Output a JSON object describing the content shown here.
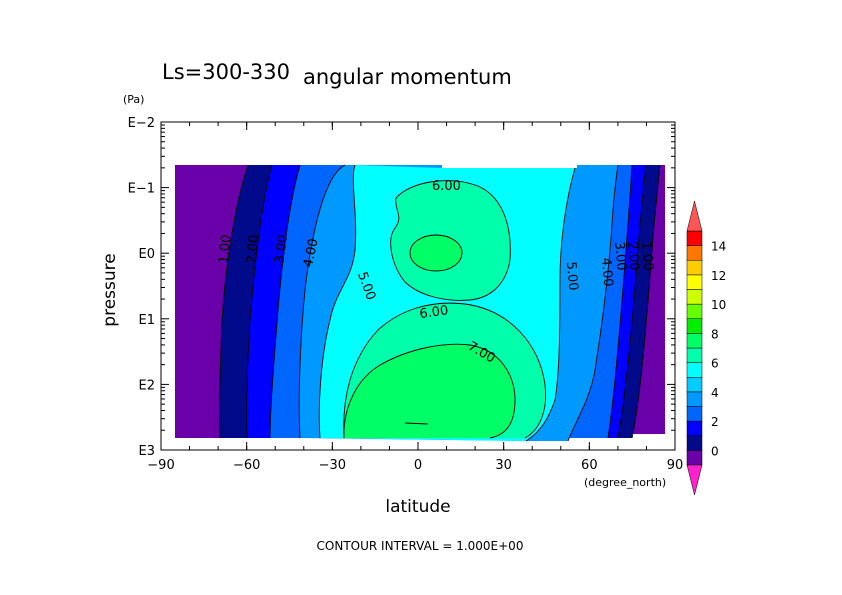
{
  "chart_data": {
    "type": "contour",
    "title": "angular momentum",
    "subtitle": "Ls=300-330",
    "xlabel": "latitude",
    "xunit": "(degree_north)",
    "ylabel": "pressure",
    "yunit": "(Pa)",
    "xlim": [
      -90,
      90
    ],
    "x_ticks": [
      {
        "value": -90,
        "label": "−90"
      },
      {
        "value": -60,
        "label": "−60"
      },
      {
        "value": -30,
        "label": "−30"
      },
      {
        "value": 0,
        "label": "0"
      },
      {
        "value": 30,
        "label": "30"
      },
      {
        "value": 60,
        "label": "60"
      },
      {
        "value": 90,
        "label": "90"
      }
    ],
    "y_scale": "log (decreasing upward)",
    "y_ticks": [
      "E−2",
      "E−1",
      "E0",
      "E1",
      "E2",
      "E3"
    ],
    "contour_interval_text": "CONTOUR INTERVAL = 1.000E+00",
    "contour_labels": [
      "1.00",
      "2.00",
      "3.00",
      "4.00",
      "5.00",
      "6.00",
      "7.00",
      "5.00",
      "4.00",
      "3.00",
      "2.00",
      "1.00",
      "6.00"
    ],
    "colorbar": {
      "tick_labels": [
        "0",
        "2",
        "4",
        "6",
        "8",
        "10",
        "12",
        "14"
      ],
      "colors": [
        "#ff22cc",
        "#6a00aa",
        "#000a8a",
        "#0000ff",
        "#0066ff",
        "#0099ff",
        "#00ccff",
        "#00ffff",
        "#00ffaa",
        "#00ff66",
        "#00ee00",
        "#66ff00",
        "#ccff00",
        "#ffff00",
        "#ffcc00",
        "#ff7700",
        "#ff0000",
        "#ff5555"
      ]
    }
  }
}
